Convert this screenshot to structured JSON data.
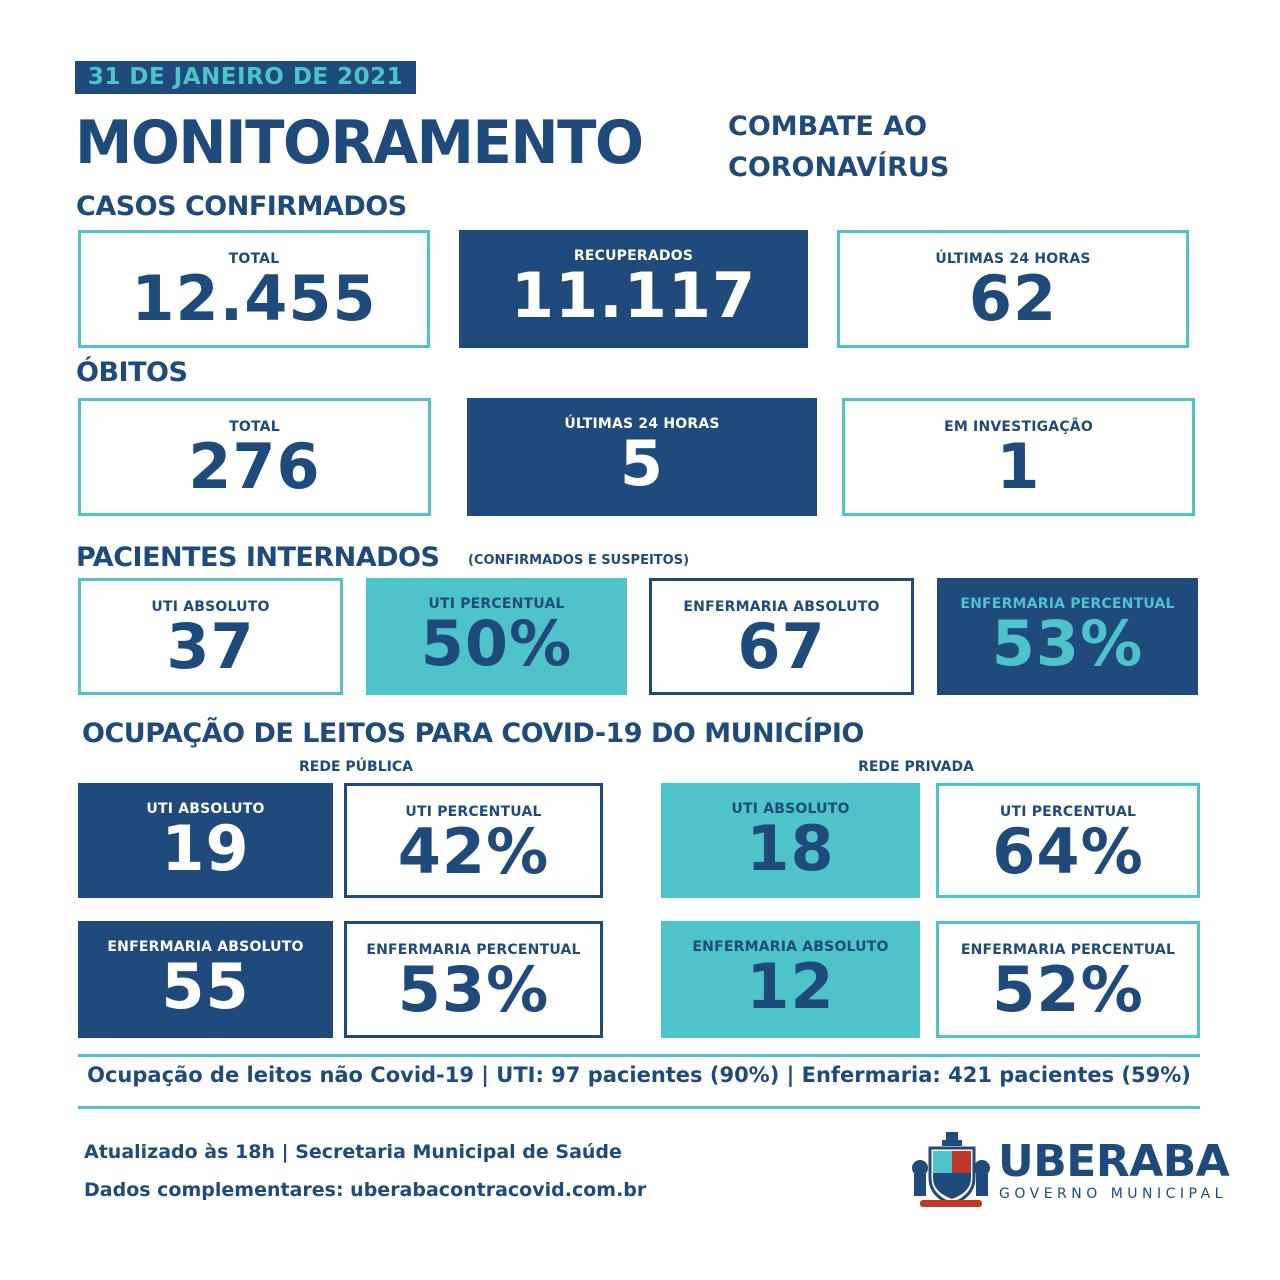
{
  "header": {
    "date": "31 DE JANEIRO DE 2021",
    "title": "MONITORAMENTO",
    "subtitle_line1": "COMBATE AO",
    "subtitle_line2": "CORONAVÍRUS"
  },
  "casos": {
    "title": "CASOS CONFIRMADOS",
    "total_label": "TOTAL",
    "total_value": "12.455",
    "recuperados_label": "RECUPERADOS",
    "recuperados_value": "11.117",
    "ultimas_label": "ÚLTIMAS 24 HORAS",
    "ultimas_value": "62"
  },
  "obitos": {
    "title": "ÓBITOS",
    "total_label": "TOTAL",
    "total_value": "276",
    "ultimas_label": "ÚLTIMAS 24 HORAS",
    "ultimas_value": "5",
    "investigacao_label": "EM INVESTIGAÇÃO",
    "investigacao_value": "1"
  },
  "internados": {
    "title": "PACIENTES INTERNADOS",
    "note": "(CONFIRMADOS E SUSPEITOS)",
    "uti_abs_label": "UTI ABSOLUTO",
    "uti_abs_value": "37",
    "uti_pct_label": "UTI PERCENTUAL",
    "uti_pct_value": "50%",
    "enf_abs_label": "ENFERMARIA ABSOLUTO",
    "enf_abs_value": "67",
    "enf_pct_label": "ENFERMARIA PERCENTUAL",
    "enf_pct_value": "53%"
  },
  "ocupacao": {
    "title": "OCUPAÇÃO DE LEITOS PARA COVID-19 DO MUNICÍPIO",
    "publica": {
      "label": "REDE PÚBLICA",
      "uti_abs_label": "UTI ABSOLUTO",
      "uti_abs_value": "19",
      "uti_pct_label": "UTI PERCENTUAL",
      "uti_pct_value": "42%",
      "enf_abs_label": "ENFERMARIA ABSOLUTO",
      "enf_abs_value": "55",
      "enf_pct_label": "ENFERMARIA PERCENTUAL",
      "enf_pct_value": "53%"
    },
    "privada": {
      "label": "REDE PRIVADA",
      "uti_abs_label": "UTI ABSOLUTO",
      "uti_abs_value": "18",
      "uti_pct_label": "UTI PERCENTUAL",
      "uti_pct_value": "64%",
      "enf_abs_label": "ENFERMARIA ABSOLUTO",
      "enf_abs_value": "12",
      "enf_pct_label": "ENFERMARIA PERCENTUAL",
      "enf_pct_value": "52%"
    }
  },
  "nao_covid": "Ocupação de leitos não Covid-19 | UTI: 97 pacientes (90%) | Enfermaria: 421 pacientes (59%)",
  "footer": {
    "updated": "Atualizado às 18h | Secretaria Municipal de Saúde",
    "extra": "Dados complementares: uberabacontracovid.com.br",
    "logo_name": "UBERABA",
    "logo_sub": "GOVERNO MUNICIPAL"
  },
  "colors": {
    "navy": "#1f4a7c",
    "teal": "#4ec3c9",
    "white": "#ffffff"
  }
}
